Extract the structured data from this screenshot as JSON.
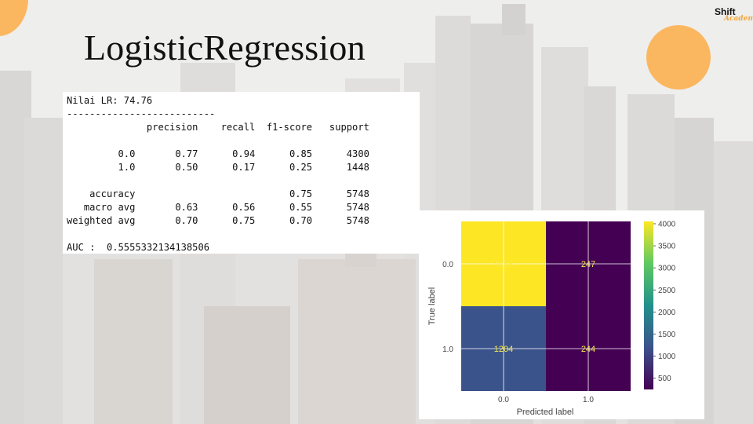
{
  "slide": {
    "title": "LogisticRegression",
    "logo": {
      "top": "Shift",
      "bottom": "Academy"
    },
    "colors": {
      "accent": "#fbb760",
      "background": "#eeeeec"
    }
  },
  "report": {
    "lines": [
      "Nilai LR: 74.76",
      "--------------------------",
      "              precision    recall  f1-score   support",
      "",
      "         0.0       0.77      0.94      0.85      4300",
      "         1.0       0.50      0.17      0.25      1448",
      "",
      "    accuracy                           0.75      5748",
      "   macro avg       0.63      0.56      0.55      5748",
      "weighted avg       0.70      0.75      0.70      5748",
      "",
      "AUC :  0.5555332134138506"
    ]
  },
  "chart_data": {
    "type": "heatmap",
    "title": "",
    "xlabel": "Predicted label",
    "ylabel": "True label",
    "x_categories": [
      "0.0",
      "1.0"
    ],
    "y_categories": [
      "0.0",
      "1.0"
    ],
    "values": [
      [
        4053,
        247
      ],
      [
        1204,
        244
      ]
    ],
    "colormap": "viridis",
    "colorbar": {
      "min": 244,
      "max": 4053,
      "ticks": [
        500,
        1000,
        1500,
        2000,
        2500,
        3000,
        3500,
        4000
      ]
    },
    "grid": true,
    "annotation_color": "#f5e94a"
  }
}
